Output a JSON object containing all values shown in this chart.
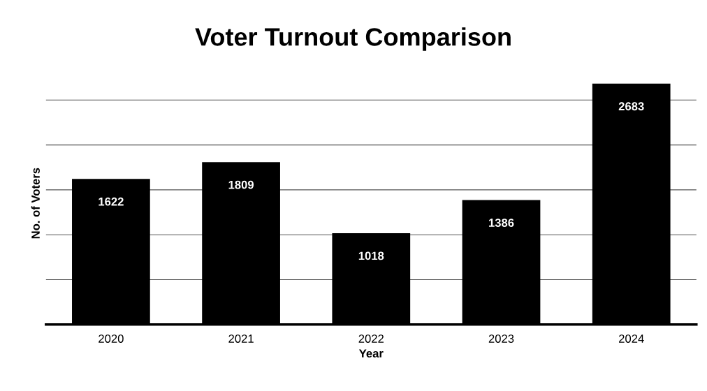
{
  "chart_data": {
    "type": "bar",
    "title": "Voter Turnout Comparison",
    "xlabel": "Year",
    "ylabel": "No. of Voters",
    "categories": [
      "2020",
      "2021",
      "2022",
      "2023",
      "2024"
    ],
    "values": [
      1622,
      1809,
      1018,
      1386,
      2683
    ],
    "color": "#000000",
    "ylim": [
      0,
      2700
    ],
    "yticks": [
      {
        "value": 0,
        "label": null
      },
      {
        "value": 500,
        "label": null
      },
      {
        "value": 1000,
        "label": null
      },
      {
        "value": 1500,
        "label": null
      },
      {
        "value": 2000,
        "label": null
      },
      {
        "value": 2500,
        "label": null
      }
    ],
    "tick_labels": "x",
    "grid": "y",
    "data_labels": true
  }
}
